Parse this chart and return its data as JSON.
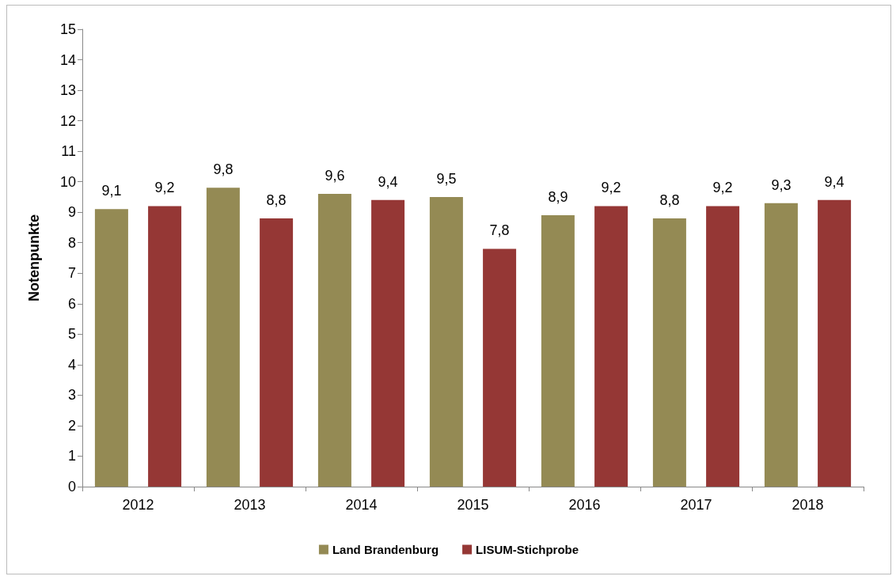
{
  "chart_data": {
    "type": "bar",
    "ylabel": "Notenpunkte",
    "categories": [
      "2012",
      "2013",
      "2014",
      "2015",
      "2016",
      "2017",
      "2018"
    ],
    "series": [
      {
        "name": "Land Brandenburg",
        "color": "#948a54",
        "values": [
          9.1,
          9.8,
          9.6,
          9.5,
          8.9,
          8.8,
          9.3
        ],
        "value_labels": [
          "9,1",
          "9,8",
          "9,6",
          "9,5",
          "8,9",
          "8,8",
          "9,3"
        ]
      },
      {
        "name": "LISUM-Stichprobe",
        "color": "#953735",
        "values": [
          9.2,
          8.8,
          9.4,
          7.8,
          9.2,
          9.2,
          9.4
        ],
        "value_labels": [
          "9,2",
          "8,8",
          "9,4",
          "7,8",
          "9,2",
          "9,2",
          "9,4"
        ]
      }
    ],
    "ylim": [
      0,
      15
    ],
    "yticks": [
      0,
      1,
      2,
      3,
      4,
      5,
      6,
      7,
      8,
      9,
      10,
      11,
      12,
      13,
      14,
      15
    ],
    "grid": false,
    "legend": "bottom"
  }
}
